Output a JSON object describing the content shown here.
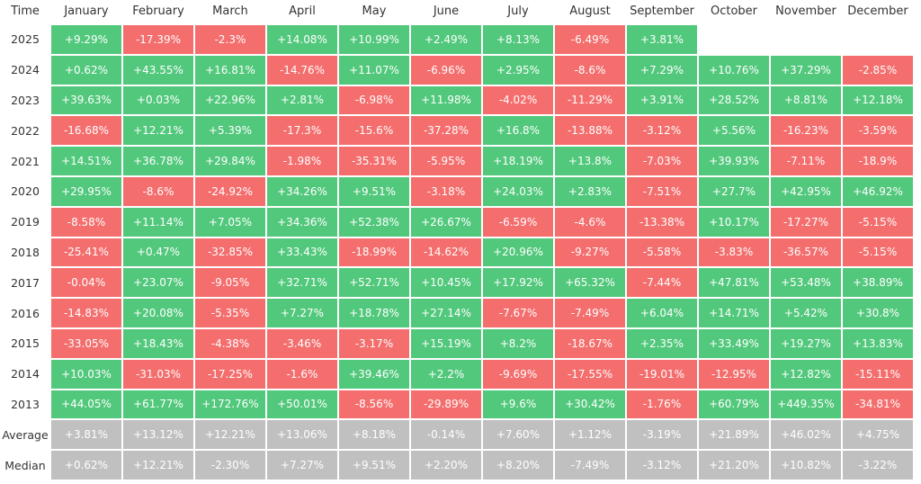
{
  "header": {
    "time": "Time",
    "months": [
      "January",
      "February",
      "March",
      "April",
      "May",
      "June",
      "July",
      "August",
      "September",
      "October",
      "November",
      "December"
    ]
  },
  "rows": [
    {
      "year": "2025",
      "cells": [
        "+9.29%",
        "-17.39%",
        "-2.3%",
        "+14.08%",
        "+10.99%",
        "+2.49%",
        "+8.13%",
        "-6.49%",
        "+3.81%"
      ]
    },
    {
      "year": "2024",
      "cells": [
        "+0.62%",
        "+43.55%",
        "+16.81%",
        "-14.76%",
        "+11.07%",
        "-6.96%",
        "+2.95%",
        "-8.6%",
        "+7.29%",
        "+10.76%",
        "+37.29%",
        "-2.85%"
      ]
    },
    {
      "year": "2023",
      "cells": [
        "+39.63%",
        "+0.03%",
        "+22.96%",
        "+2.81%",
        "-6.98%",
        "+11.98%",
        "-4.02%",
        "-11.29%",
        "+3.91%",
        "+28.52%",
        "+8.81%",
        "+12.18%"
      ]
    },
    {
      "year": "2022",
      "cells": [
        "-16.68%",
        "+12.21%",
        "+5.39%",
        "-17.3%",
        "-15.6%",
        "-37.28%",
        "+16.8%",
        "-13.88%",
        "-3.12%",
        "+5.56%",
        "-16.23%",
        "-3.59%"
      ]
    },
    {
      "year": "2021",
      "cells": [
        "+14.51%",
        "+36.78%",
        "+29.84%",
        "-1.98%",
        "-35.31%",
        "-5.95%",
        "+18.19%",
        "+13.8%",
        "-7.03%",
        "+39.93%",
        "-7.11%",
        "-18.9%"
      ]
    },
    {
      "year": "2020",
      "cells": [
        "+29.95%",
        "-8.6%",
        "-24.92%",
        "+34.26%",
        "+9.51%",
        "-3.18%",
        "+24.03%",
        "+2.83%",
        "-7.51%",
        "+27.7%",
        "+42.95%",
        "+46.92%"
      ]
    },
    {
      "year": "2019",
      "cells": [
        "-8.58%",
        "+11.14%",
        "+7.05%",
        "+34.36%",
        "+52.38%",
        "+26.67%",
        "-6.59%",
        "-4.6%",
        "-13.38%",
        "+10.17%",
        "-17.27%",
        "-5.15%"
      ]
    },
    {
      "year": "2018",
      "cells": [
        "-25.41%",
        "+0.47%",
        "-32.85%",
        "+33.43%",
        "-18.99%",
        "-14.62%",
        "+20.96%",
        "-9.27%",
        "-5.58%",
        "-3.83%",
        "-36.57%",
        "-5.15%"
      ]
    },
    {
      "year": "2017",
      "cells": [
        "-0.04%",
        "+23.07%",
        "-9.05%",
        "+32.71%",
        "+52.71%",
        "+10.45%",
        "+17.92%",
        "+65.32%",
        "-7.44%",
        "+47.81%",
        "+53.48%",
        "+38.89%"
      ]
    },
    {
      "year": "2016",
      "cells": [
        "-14.83%",
        "+20.08%",
        "-5.35%",
        "+7.27%",
        "+18.78%",
        "+27.14%",
        "-7.67%",
        "-7.49%",
        "+6.04%",
        "+14.71%",
        "+5.42%",
        "+30.8%"
      ]
    },
    {
      "year": "2015",
      "cells": [
        "-33.05%",
        "+18.43%",
        "-4.38%",
        "-3.46%",
        "-3.17%",
        "+15.19%",
        "+8.2%",
        "-18.67%",
        "+2.35%",
        "+33.49%",
        "+19.27%",
        "+13.83%"
      ]
    },
    {
      "year": "2014",
      "cells": [
        "+10.03%",
        "-31.03%",
        "-17.25%",
        "-1.6%",
        "+39.46%",
        "+2.2%",
        "-9.69%",
        "-17.55%",
        "-19.01%",
        "-12.95%",
        "+12.82%",
        "-15.11%"
      ]
    },
    {
      "year": "2013",
      "cells": [
        "+44.05%",
        "+61.77%",
        "+172.76%",
        "+50.01%",
        "-8.56%",
        "-29.89%",
        "+9.6%",
        "+30.42%",
        "-1.76%",
        "+60.79%",
        "+449.35%",
        "-34.81%"
      ]
    }
  ],
  "summary": [
    {
      "label": "Average",
      "cells": [
        "+3.81%",
        "+13.12%",
        "+12.21%",
        "+13.06%",
        "+8.18%",
        "-0.14%",
        "+7.60%",
        "+1.12%",
        "-3.19%",
        "+21.89%",
        "+46.02%",
        "+4.75%"
      ]
    },
    {
      "label": "Median",
      "cells": [
        "+0.62%",
        "+12.21%",
        "-2.30%",
        "+7.27%",
        "+9.51%",
        "+2.20%",
        "+8.20%",
        "-7.49%",
        "-3.12%",
        "+21.20%",
        "+10.82%",
        "-3.22%"
      ]
    }
  ]
}
